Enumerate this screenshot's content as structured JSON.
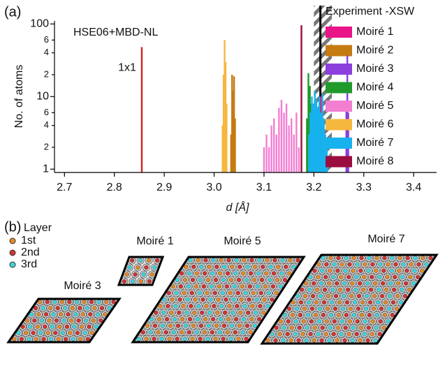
{
  "chart_data": {
    "type": "bar",
    "panel_label": "(a)",
    "annotation": "HSE06+MBD-NL",
    "x_label": "d [Å]",
    "y_label": "No. of atoms",
    "log_y": true,
    "xlim": [
      2.68,
      3.446
    ],
    "ylim": [
      0.9,
      110
    ],
    "xticks": [
      2.7,
      2.8,
      2.9,
      {
        "value": 3,
        "label": "3.0"
      },
      3.1,
      3.2,
      3.3,
      3.4
    ],
    "yticks": [
      1,
      {
        "value": 2,
        "label": "2"
      },
      {
        "value": 4,
        "label": "4"
      },
      {
        "value": 6,
        "label": "6"
      },
      10,
      {
        "value": 20,
        "label": "2"
      },
      {
        "value": 40,
        "label": "4"
      },
      {
        "value": 60,
        "label": "6"
      },
      100
    ],
    "reference": {
      "label": "1x1",
      "x": 2.855,
      "value": 48,
      "color": "#d42020"
    },
    "experiment": {
      "label": "Experiment -XSW",
      "value": 3.213,
      "range": [
        3.2,
        3.236
      ]
    },
    "series": [
      {
        "name": "Moiré 1",
        "color": "#ea1387",
        "x": [
          3.214
        ],
        "values": [
          10
        ]
      },
      {
        "name": "Moiré 2",
        "color": "#c57a12",
        "x": [
          3.034,
          3.036,
          3.038,
          3.04,
          3.042
        ],
        "values": [
          3,
          20,
          12,
          19,
          5
        ]
      },
      {
        "name": "Moiré 3",
        "color": "#8c3fdc",
        "x": [
          3.265,
          3.267,
          3.269
        ],
        "values": [
          8,
          37,
          6
        ]
      },
      {
        "name": "Moiré 4",
        "color": "#1f9a2b",
        "x": [
          3.186,
          3.189,
          3.192,
          3.195
        ],
        "values": [
          5,
          21,
          14,
          8
        ]
      },
      {
        "name": "Moiré 5",
        "color": "#f27fd2",
        "x": [
          3.1,
          3.105,
          3.11,
          3.115,
          3.12,
          3.125,
          3.13,
          3.135,
          3.14,
          3.145,
          3.15,
          3.155,
          3.16,
          3.165,
          3.17
        ],
        "values": [
          2,
          3,
          2,
          4,
          5,
          3,
          7,
          9,
          6,
          8,
          4,
          5,
          3,
          6,
          2
        ]
      },
      {
        "name": "Moiré 6",
        "color": "#f6b73f",
        "x": [
          3.017,
          3.019,
          3.021,
          3.023,
          3.025
        ],
        "values": [
          4,
          20,
          60,
          30,
          8
        ]
      },
      {
        "name": "Moiré 7",
        "color": "#17b2ee",
        "x": [
          3.19,
          3.193,
          3.196,
          3.199,
          3.202,
          3.205,
          3.208,
          3.211,
          3.214,
          3.217,
          3.22,
          3.223,
          3.226
        ],
        "values": [
          3,
          6,
          10,
          8,
          12,
          9,
          7,
          10,
          6,
          11,
          5,
          3,
          2
        ]
      },
      {
        "name": "Moiré 8",
        "color": "#9b0c3f",
        "x": [
          3.175
        ],
        "values": [
          96
        ]
      }
    ]
  },
  "panel_b": {
    "label": "(b)",
    "legend_title": "Layer",
    "layers": [
      "1st",
      "2nd",
      "3rd"
    ],
    "structures": [
      "Moiré 3",
      "Moiré 1",
      "Moiré 5",
      "Moiré 7"
    ]
  }
}
